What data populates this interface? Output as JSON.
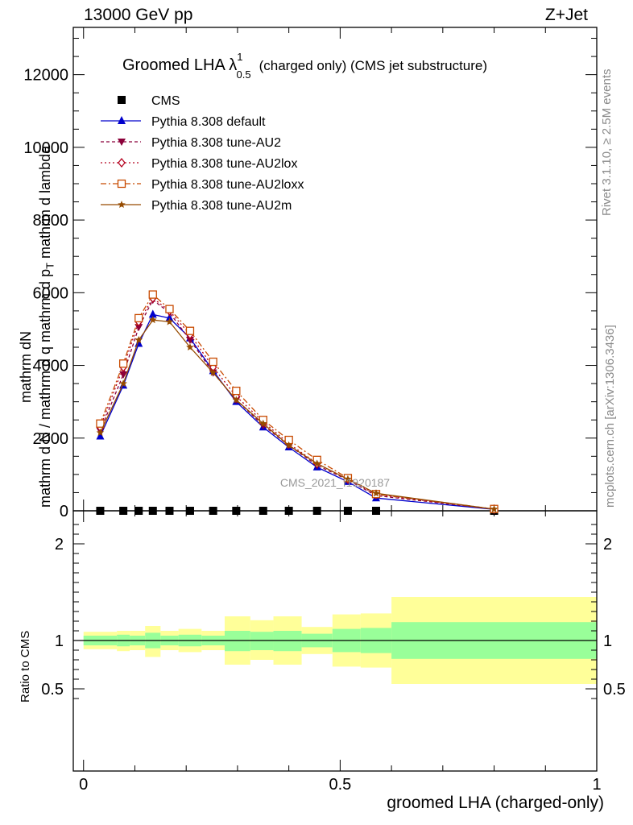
{
  "header": {
    "left": "13000 GeV pp",
    "right": "Z+Jet"
  },
  "side_text": {
    "rivet": "Rivet 3.1.10, ≥ 2.5M events",
    "mcplots": "mcplots.cern.ch [arXiv:1306.3436]"
  },
  "watermark": "CMS_2021_I1920187",
  "chart_data": [
    {
      "type": "line",
      "title": "Groomed LHA λ",
      "title_sup": "1",
      "title_sub": "0.5",
      "title_suffix": "(charged only) (CMS jet substructure)",
      "xlabel": "groomed LHA (charged-only)",
      "ylabel_top": "1",
      "ylabel_numerator": "mathrm d^2N",
      "ylabel_num_text": "mathrm dN",
      "ylabel_denominator": "mathrm d N / mathrm d p_T mathrm d lambda",
      "ylabel_den_text": "mathrm d N / mathrm d q mathrm d p",
      "ylabel_den_sub": "T",
      "ylabel_den_tail": "mathrm d lambda",
      "xlim": [
        -0.02,
        1.0
      ],
      "ylim": [
        0,
        13300
      ],
      "yticks": [
        2000,
        4000,
        6000,
        8000,
        10000,
        12000
      ],
      "ytick_labels": [
        "2000",
        "4000",
        "6000",
        "8000",
        "10000",
        "12000"
      ],
      "zero_label": "0",
      "legend_position": "top-left",
      "x": [
        0.0325,
        0.0775,
        0.1075,
        0.135,
        0.1675,
        0.2075,
        0.2525,
        0.2975,
        0.35,
        0.4,
        0.455,
        0.515,
        0.57,
        0.8
      ],
      "series": [
        {
          "name": "CMS",
          "color": "#000000",
          "marker": "square",
          "dash": "none",
          "values": [
            0,
            0,
            0,
            0,
            0,
            0,
            0,
            0,
            0,
            0,
            0,
            0,
            0,
            0
          ]
        },
        {
          "name": "Pythia 8.308 default",
          "color": "#0000cc",
          "marker": "triangle-up",
          "dash": "solid",
          "values": [
            2050,
            3450,
            4600,
            5400,
            5300,
            4750,
            3850,
            3000,
            2300,
            1750,
            1200,
            800,
            350,
            40
          ]
        },
        {
          "name": "Pythia 8.308 tune-AU2",
          "color": "#8b003a",
          "marker": "triangle-down",
          "dash": "4,3",
          "values": [
            2200,
            3750,
            5050,
            5800,
            5450,
            4700,
            3800,
            3050,
            2350,
            1800,
            1250,
            850,
            420,
            45
          ]
        },
        {
          "name": "Pythia 8.308 tune-AU2lox",
          "color": "#b4001e",
          "marker": "diamond-open",
          "dash": "2,3",
          "values": [
            2300,
            3950,
            5200,
            5850,
            5500,
            4850,
            3950,
            3150,
            2450,
            1850,
            1300,
            870,
            450,
            45
          ]
        },
        {
          "name": "Pythia 8.308 tune-AU2loxx",
          "color": "#c84a00",
          "marker": "square-open",
          "dash": "7,3,2,3",
          "values": [
            2400,
            4050,
            5300,
            5950,
            5550,
            4950,
            4100,
            3300,
            2500,
            1950,
            1400,
            900,
            460,
            50
          ]
        },
        {
          "name": "Pythia 8.308 tune-AU2m",
          "color": "#964b00",
          "marker": "star",
          "dash": "solid",
          "values": [
            2150,
            3500,
            4700,
            5250,
            5200,
            4500,
            3800,
            3050,
            2400,
            1800,
            1300,
            870,
            480,
            45
          ]
        }
      ]
    },
    {
      "type": "area",
      "ylabel": "Ratio to CMS",
      "xlabel": "groomed LHA (charged-only)",
      "xlim": [
        -0.02,
        1.0
      ],
      "ylim": [
        0.3,
        2.3
      ],
      "yticks": [
        0.5,
        1,
        2
      ],
      "ytick_labels": [
        "0.5",
        "1",
        "2"
      ],
      "xticks": [
        0,
        0.5,
        1
      ],
      "xtick_labels": [
        "0",
        "0.5",
        "1"
      ],
      "bin_edges": [
        0.0,
        0.065,
        0.09,
        0.12,
        0.15,
        0.185,
        0.23,
        0.275,
        0.325,
        0.37,
        0.425,
        0.485,
        0.54,
        0.6,
        1.0
      ],
      "band_inner_color": "#99ff99",
      "band_outer_color": "#ffff99",
      "inner_lo": [
        0.95,
        0.94,
        0.95,
        0.92,
        0.95,
        0.94,
        0.95,
        0.89,
        0.9,
        0.89,
        0.93,
        0.88,
        0.87,
        0.81
      ],
      "inner_hi": [
        1.05,
        1.06,
        1.05,
        1.08,
        1.05,
        1.06,
        1.05,
        1.1,
        1.09,
        1.1,
        1.07,
        1.12,
        1.13,
        1.19
      ],
      "outer_lo": [
        0.91,
        0.89,
        0.9,
        0.83,
        0.9,
        0.88,
        0.9,
        0.75,
        0.8,
        0.75,
        0.86,
        0.73,
        0.72,
        0.55
      ],
      "outer_hi": [
        1.09,
        1.1,
        1.1,
        1.15,
        1.1,
        1.12,
        1.1,
        1.25,
        1.21,
        1.25,
        1.14,
        1.27,
        1.28,
        1.45
      ]
    }
  ]
}
